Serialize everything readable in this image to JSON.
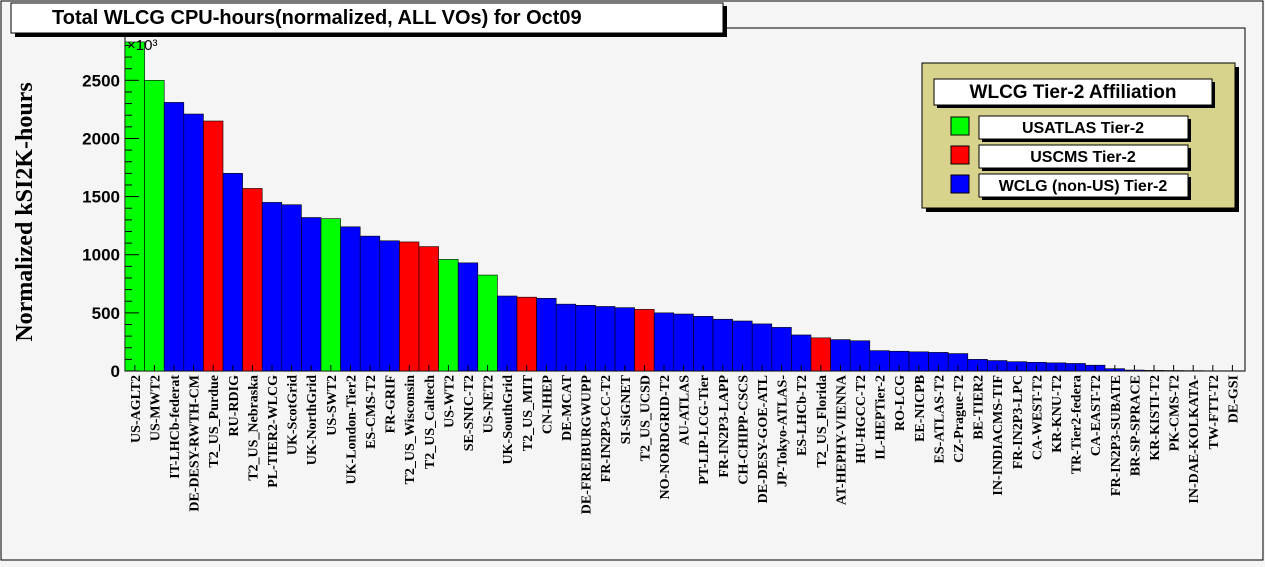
{
  "chart_data": {
    "type": "bar",
    "title": "Total WLCG CPU-hours(normalized, ALL VOs) for Oct09",
    "ylabel": "Normalized kSI2K-hours",
    "y_multiplier_label": "×10³",
    "ylim": [
      0,
      2950
    ],
    "yticks": [
      0,
      500,
      1000,
      1500,
      2000,
      2500
    ],
    "grid": false,
    "legend_position": "top-right",
    "legend": {
      "title": "WLCG Tier-2 Affiliation",
      "entries": [
        {
          "label": "USATLAS Tier-2",
          "color": "#00ff00"
        },
        {
          "label": "USCMS Tier-2",
          "color": "#ff0000"
        },
        {
          "label": "WCLG (non-US) Tier-2",
          "color": "#0000ff"
        }
      ]
    },
    "categories": [
      "US-AGLT2",
      "US-MWT2",
      "IT-LHCb-federat",
      "DE-DESY-RWTH-CM",
      "T2_US_Purdue",
      "RU-RDIG",
      "T2_US_Nebraska",
      "PL-TIER2-WLCG",
      "UK-ScotGrid",
      "UK-NorthGrid",
      "US-SWT2",
      "UK-London-Tier2",
      "ES-CMS-T2",
      "FR-GRIF",
      "T2_US_Wisconsin",
      "T2_US_Caltech",
      "US-WT2",
      "SE-SNIC-T2",
      "US-NET2",
      "UK-SouthGrid",
      "T2_US_MIT",
      "CN-IHEP",
      "DE-MCAT",
      "DE-FREIBURGWUPP",
      "FR-IN2P3-CC-T2",
      "SI-SiGNET",
      "T2_US_UCSD",
      "NO-NORDGRID-T2",
      "AU-ATLAS",
      "PT-LIP-LCG-Tier",
      "FR-IN2P3-LAPP",
      "CH-CHIPP-CSCS",
      "DE-DESY-GOE-ATL",
      "JP-Tokyo-ATLAS-",
      "ES-LHCb-T2",
      "T2_US_Florida",
      "AT-HEPHY-VIENNA",
      "HU-HGCC-T2",
      "IL-HEPTier-2",
      "RO-LCG",
      "EE-NICPB",
      "ES-ATLAS-T2",
      "CZ-Prague-T2",
      "BE-TIER2",
      "IN-INDIACMS-TIF",
      "FR-IN2P3-LPC",
      "CA-WEST-T2",
      "KR-KNU-T2",
      "TR-Tier2-federa",
      "CA-EAST-T2",
      "FR-IN2P3-SUBATE",
      "BR-SP-SPRACE",
      "KR-KISTI-T2",
      "PK-CMS-T2",
      "IN-DAE-KOLKATA-",
      "TW-FTT-T2",
      "DE-GSI"
    ],
    "values": [
      2830,
      2500,
      2310,
      2210,
      2150,
      1700,
      1570,
      1450,
      1430,
      1320,
      1310,
      1240,
      1160,
      1120,
      1110,
      1070,
      960,
      930,
      825,
      645,
      635,
      625,
      575,
      565,
      555,
      545,
      530,
      500,
      490,
      470,
      445,
      430,
      405,
      375,
      310,
      285,
      270,
      260,
      175,
      170,
      165,
      160,
      150,
      100,
      90,
      80,
      75,
      70,
      65,
      50,
      20,
      8,
      5,
      4,
      3,
      2,
      2
    ],
    "series_color_key": [
      "atlas",
      "atlas",
      "other",
      "other",
      "cms",
      "other",
      "cms",
      "other",
      "other",
      "other",
      "atlas",
      "other",
      "other",
      "other",
      "cms",
      "cms",
      "atlas",
      "other",
      "atlas",
      "other",
      "cms",
      "other",
      "other",
      "other",
      "other",
      "other",
      "cms",
      "other",
      "other",
      "other",
      "other",
      "other",
      "other",
      "other",
      "other",
      "cms",
      "other",
      "other",
      "other",
      "other",
      "other",
      "other",
      "other",
      "other",
      "other",
      "other",
      "other",
      "other",
      "other",
      "other",
      "other",
      "other",
      "other",
      "other",
      "other",
      "other",
      "other"
    ],
    "colors": {
      "atlas": "#00ff00",
      "cms": "#ff0000",
      "other": "#0000ff"
    }
  }
}
